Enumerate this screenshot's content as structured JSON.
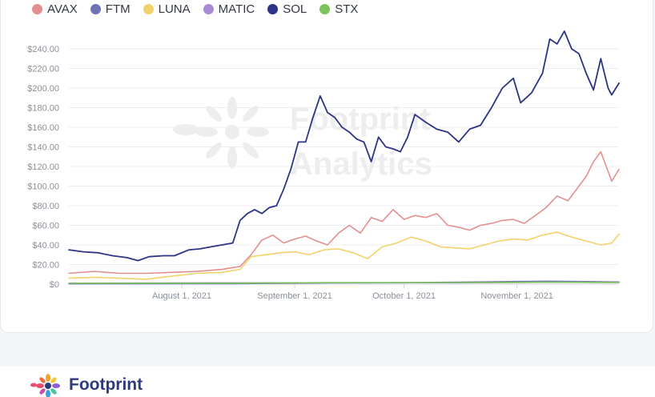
{
  "legend": [
    {
      "name": "AVAX",
      "color": "#e48f8f"
    },
    {
      "name": "FTM",
      "color": "#6f73b6"
    },
    {
      "name": "LUNA",
      "color": "#f2d26a"
    },
    {
      "name": "MATIC",
      "color": "#a98ad4"
    },
    {
      "name": "SOL",
      "color": "#2d3385"
    },
    {
      "name": "STX",
      "color": "#7cc35c"
    }
  ],
  "watermark": {
    "line1": "Footprint",
    "line2": "Analytics"
  },
  "footer": {
    "brand": "Footprint"
  },
  "chart_data": {
    "type": "line",
    "yticks": [
      "$0",
      "$20.00",
      "$40.00",
      "$60.00",
      "$80.00",
      "$100.00",
      "$120.00",
      "$140.00",
      "$160.00",
      "$180.00",
      "$200.00",
      "$220.00",
      "$240.00"
    ],
    "xticks": [
      {
        "label": "August 1, 2021",
        "date": "2021-08-01"
      },
      {
        "label": "September 1, 2021",
        "date": "2021-09-01"
      },
      {
        "label": "October 1, 2021",
        "date": "2021-10-01"
      },
      {
        "label": "November 1, 2021",
        "date": "2021-11-01"
      }
    ],
    "xlim": [
      "2021-07-01",
      "2021-11-29"
    ],
    "ylim": [
      0,
      250
    ],
    "series": [
      {
        "name": "SOL",
        "color": "#2d3385",
        "points": [
          [
            "2021-07-01",
            35
          ],
          [
            "2021-07-05",
            33
          ],
          [
            "2021-07-09",
            32
          ],
          [
            "2021-07-13",
            29
          ],
          [
            "2021-07-17",
            27
          ],
          [
            "2021-07-20",
            24
          ],
          [
            "2021-07-23",
            28
          ],
          [
            "2021-07-27",
            29
          ],
          [
            "2021-07-30",
            29
          ],
          [
            "2021-08-03",
            35
          ],
          [
            "2021-08-06",
            36
          ],
          [
            "2021-08-09",
            38
          ],
          [
            "2021-08-12",
            40
          ],
          [
            "2021-08-15",
            42
          ],
          [
            "2021-08-17",
            65
          ],
          [
            "2021-08-19",
            72
          ],
          [
            "2021-08-21",
            76
          ],
          [
            "2021-08-23",
            72
          ],
          [
            "2021-08-25",
            78
          ],
          [
            "2021-08-27",
            80
          ],
          [
            "2021-08-29",
            97
          ],
          [
            "2021-08-31",
            118
          ],
          [
            "2021-09-02",
            145
          ],
          [
            "2021-09-04",
            145
          ],
          [
            "2021-09-06",
            170
          ],
          [
            "2021-09-08",
            192
          ],
          [
            "2021-09-10",
            175
          ],
          [
            "2021-09-12",
            170
          ],
          [
            "2021-09-14",
            160
          ],
          [
            "2021-09-16",
            155
          ],
          [
            "2021-09-18",
            148
          ],
          [
            "2021-09-20",
            145
          ],
          [
            "2021-09-22",
            125
          ],
          [
            "2021-09-24",
            150
          ],
          [
            "2021-09-26",
            140
          ],
          [
            "2021-09-28",
            138
          ],
          [
            "2021-09-30",
            135
          ],
          [
            "2021-10-02",
            150
          ],
          [
            "2021-10-04",
            173
          ],
          [
            "2021-10-07",
            165
          ],
          [
            "2021-10-10",
            158
          ],
          [
            "2021-10-13",
            155
          ],
          [
            "2021-10-16",
            145
          ],
          [
            "2021-10-19",
            158
          ],
          [
            "2021-10-22",
            162
          ],
          [
            "2021-10-25",
            180
          ],
          [
            "2021-10-28",
            200
          ],
          [
            "2021-10-31",
            210
          ],
          [
            "2021-11-02",
            185
          ],
          [
            "2021-11-05",
            195
          ],
          [
            "2021-11-08",
            215
          ],
          [
            "2021-11-10",
            250
          ],
          [
            "2021-11-12",
            245
          ],
          [
            "2021-11-14",
            258
          ],
          [
            "2021-11-16",
            240
          ],
          [
            "2021-11-18",
            235
          ],
          [
            "2021-11-20",
            215
          ],
          [
            "2021-11-22",
            198
          ],
          [
            "2021-11-24",
            230
          ],
          [
            "2021-11-26",
            200
          ],
          [
            "2021-11-27",
            193
          ],
          [
            "2021-11-29",
            205
          ]
        ]
      },
      {
        "name": "AVAX",
        "color": "#e48f8f",
        "points": [
          [
            "2021-07-01",
            11
          ],
          [
            "2021-07-08",
            13
          ],
          [
            "2021-07-15",
            11
          ],
          [
            "2021-07-22",
            11
          ],
          [
            "2021-07-29",
            12
          ],
          [
            "2021-08-05",
            13
          ],
          [
            "2021-08-12",
            15
          ],
          [
            "2021-08-17",
            18
          ],
          [
            "2021-08-20",
            30
          ],
          [
            "2021-08-23",
            45
          ],
          [
            "2021-08-26",
            50
          ],
          [
            "2021-08-29",
            42
          ],
          [
            "2021-09-01",
            46
          ],
          [
            "2021-09-04",
            49
          ],
          [
            "2021-09-07",
            44
          ],
          [
            "2021-09-10",
            40
          ],
          [
            "2021-09-13",
            52
          ],
          [
            "2021-09-16",
            60
          ],
          [
            "2021-09-19",
            52
          ],
          [
            "2021-09-22",
            68
          ],
          [
            "2021-09-25",
            64
          ],
          [
            "2021-09-28",
            76
          ],
          [
            "2021-10-01",
            66
          ],
          [
            "2021-10-04",
            70
          ],
          [
            "2021-10-07",
            68
          ],
          [
            "2021-10-10",
            72
          ],
          [
            "2021-10-13",
            60
          ],
          [
            "2021-10-16",
            58
          ],
          [
            "2021-10-19",
            55
          ],
          [
            "2021-10-22",
            60
          ],
          [
            "2021-10-25",
            62
          ],
          [
            "2021-10-28",
            65
          ],
          [
            "2021-10-31",
            66
          ],
          [
            "2021-11-03",
            62
          ],
          [
            "2021-11-06",
            70
          ],
          [
            "2021-11-09",
            78
          ],
          [
            "2021-11-12",
            90
          ],
          [
            "2021-11-15",
            85
          ],
          [
            "2021-11-18",
            100
          ],
          [
            "2021-11-20",
            110
          ],
          [
            "2021-11-22",
            125
          ],
          [
            "2021-11-24",
            135
          ],
          [
            "2021-11-26",
            115
          ],
          [
            "2021-11-27",
            105
          ],
          [
            "2021-11-29",
            117
          ]
        ]
      },
      {
        "name": "LUNA",
        "color": "#f2d26a",
        "points": [
          [
            "2021-07-01",
            6
          ],
          [
            "2021-07-08",
            7
          ],
          [
            "2021-07-15",
            6
          ],
          [
            "2021-07-22",
            5
          ],
          [
            "2021-07-29",
            8
          ],
          [
            "2021-08-05",
            11
          ],
          [
            "2021-08-12",
            12
          ],
          [
            "2021-08-17",
            15
          ],
          [
            "2021-08-20",
            28
          ],
          [
            "2021-08-24",
            30
          ],
          [
            "2021-08-28",
            32
          ],
          [
            "2021-09-01",
            33
          ],
          [
            "2021-09-05",
            30
          ],
          [
            "2021-09-09",
            35
          ],
          [
            "2021-09-13",
            36
          ],
          [
            "2021-09-17",
            32
          ],
          [
            "2021-09-21",
            26
          ],
          [
            "2021-09-25",
            38
          ],
          [
            "2021-09-29",
            42
          ],
          [
            "2021-10-03",
            48
          ],
          [
            "2021-10-07",
            44
          ],
          [
            "2021-10-11",
            38
          ],
          [
            "2021-10-15",
            37
          ],
          [
            "2021-10-19",
            36
          ],
          [
            "2021-10-23",
            40
          ],
          [
            "2021-10-27",
            44
          ],
          [
            "2021-10-31",
            46
          ],
          [
            "2021-11-04",
            45
          ],
          [
            "2021-11-08",
            50
          ],
          [
            "2021-11-12",
            53
          ],
          [
            "2021-11-16",
            48
          ],
          [
            "2021-11-20",
            44
          ],
          [
            "2021-11-24",
            40
          ],
          [
            "2021-11-27",
            42
          ],
          [
            "2021-11-29",
            51
          ]
        ]
      },
      {
        "name": "FTM",
        "color": "#6f73b6",
        "points": [
          [
            "2021-07-01",
            0.3
          ],
          [
            "2021-08-15",
            0.5
          ],
          [
            "2021-09-10",
            1.2
          ],
          [
            "2021-10-01",
            1.5
          ],
          [
            "2021-10-28",
            2.5
          ],
          [
            "2021-11-10",
            3
          ],
          [
            "2021-11-29",
            2.2
          ]
        ]
      },
      {
        "name": "MATIC",
        "color": "#a98ad4",
        "points": [
          [
            "2021-07-01",
            1
          ],
          [
            "2021-08-15",
            1.3
          ],
          [
            "2021-09-10",
            1.5
          ],
          [
            "2021-10-15",
            1.4
          ],
          [
            "2021-11-10",
            2
          ],
          [
            "2021-11-29",
            1.8
          ]
        ]
      },
      {
        "name": "STX",
        "color": "#7cc35c",
        "points": [
          [
            "2021-07-01",
            0.8
          ],
          [
            "2021-08-15",
            1
          ],
          [
            "2021-09-10",
            1.5
          ],
          [
            "2021-10-15",
            1.6
          ],
          [
            "2021-11-10",
            2
          ],
          [
            "2021-11-29",
            1.6
          ]
        ]
      }
    ]
  }
}
